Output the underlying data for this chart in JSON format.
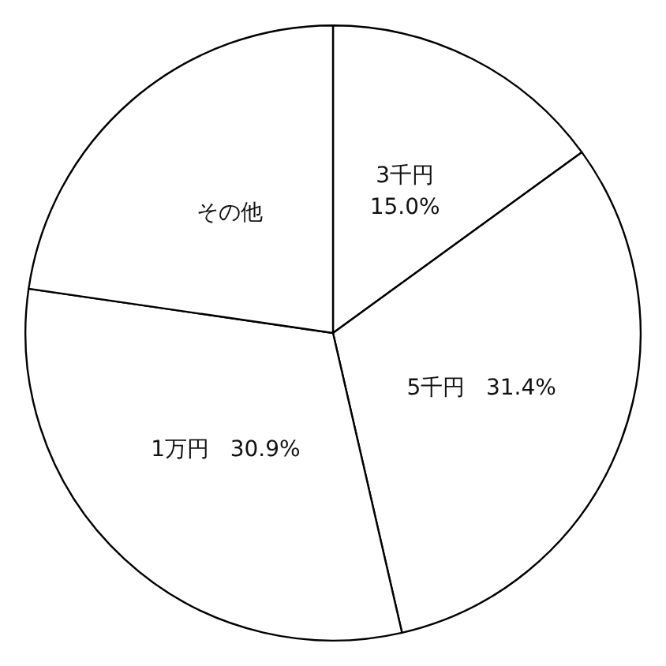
{
  "chart_data": {
    "type": "pie",
    "categories": [
      "3千円",
      "5千円",
      "1万円",
      "その他"
    ],
    "values": [
      15.0,
      31.4,
      30.9,
      22.7
    ],
    "colors": [
      "#ffffff",
      "#ffffff",
      "#ffffff",
      "#ffffff"
    ],
    "value_labels": [
      "15.0%",
      "31.4%",
      "30.9%",
      null
    ],
    "legend": false
  }
}
